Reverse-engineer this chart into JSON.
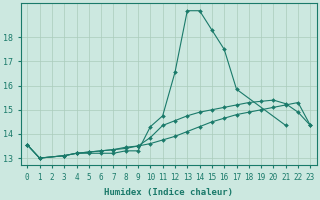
{
  "xlabel": "Humidex (Indice chaleur)",
  "background_color": "#cce8e0",
  "grid_color": "#aaccbb",
  "line_color": "#1a7a6a",
  "xlim": [
    -0.5,
    23.5
  ],
  "ylim": [
    12.7,
    19.4
  ],
  "xticks": [
    0,
    1,
    2,
    3,
    4,
    5,
    6,
    7,
    8,
    9,
    10,
    11,
    12,
    13,
    14,
    15,
    16,
    17,
    18,
    19,
    20,
    21,
    22,
    23
  ],
  "yticks": [
    13,
    14,
    15,
    16,
    17,
    18
  ],
  "line1_x": [
    0,
    1,
    3,
    4,
    5,
    6,
    7,
    8,
    9,
    10,
    11,
    12,
    13,
    14,
    15,
    16,
    17,
    21
  ],
  "line1_y": [
    13.55,
    13.0,
    13.1,
    13.2,
    13.2,
    13.2,
    13.2,
    13.3,
    13.3,
    14.3,
    14.75,
    16.55,
    19.1,
    19.1,
    18.3,
    17.5,
    15.85,
    14.35
  ],
  "line2_x": [
    0,
    1,
    3,
    4,
    5,
    6,
    7,
    8,
    9,
    10,
    11,
    12,
    13,
    14,
    15,
    16,
    17,
    18,
    19,
    20,
    21,
    22,
    23
  ],
  "line2_y": [
    13.55,
    13.0,
    13.1,
    13.2,
    13.25,
    13.3,
    13.35,
    13.45,
    13.5,
    13.85,
    14.35,
    14.55,
    14.75,
    14.9,
    15.0,
    15.1,
    15.2,
    15.3,
    15.35,
    15.4,
    15.25,
    14.9,
    14.35
  ],
  "line3_x": [
    0,
    1,
    3,
    4,
    5,
    6,
    7,
    8,
    9,
    10,
    11,
    12,
    13,
    14,
    15,
    16,
    17,
    18,
    19,
    20,
    21,
    22,
    23
  ],
  "line3_y": [
    13.55,
    13.0,
    13.1,
    13.2,
    13.25,
    13.3,
    13.35,
    13.4,
    13.5,
    13.6,
    13.75,
    13.9,
    14.1,
    14.3,
    14.5,
    14.65,
    14.8,
    14.9,
    15.0,
    15.1,
    15.2,
    15.3,
    14.35
  ],
  "xlabel_fontsize": 6.5,
  "tick_fontsize": 5.5,
  "lw": 0.8,
  "ms": 2.0
}
